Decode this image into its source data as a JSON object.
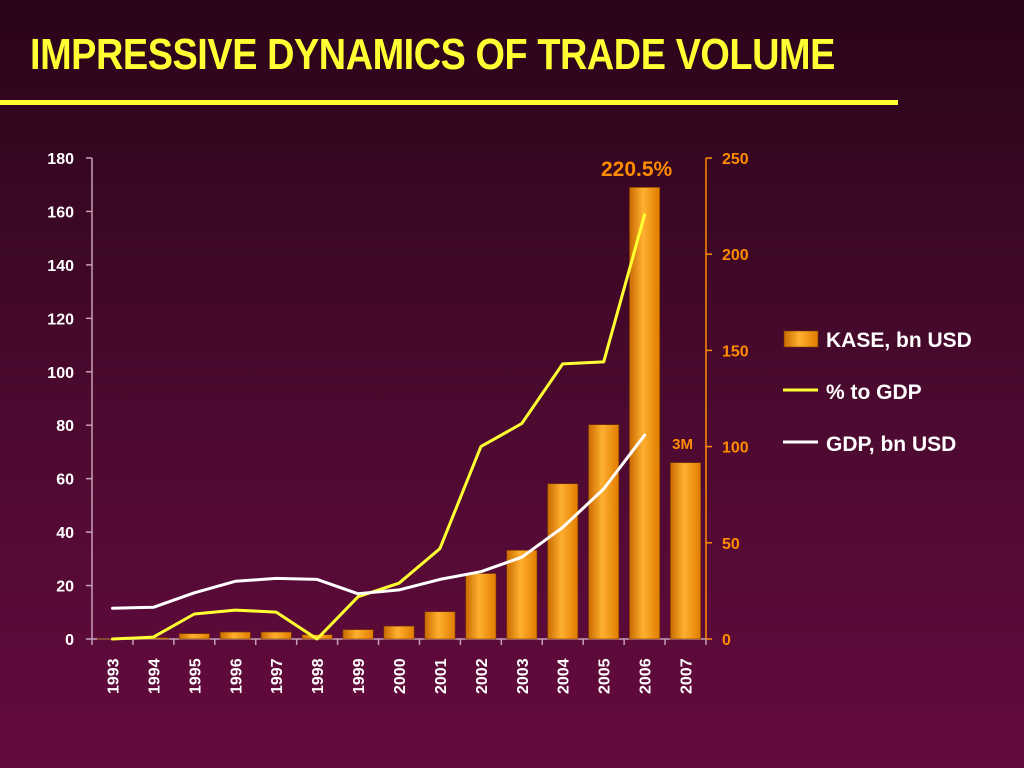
{
  "slide": {
    "title": "IMPRESSIVE DYNAMICS OF TRADE VOLUME"
  },
  "chart_data": {
    "type": "bar",
    "title": "IMPRESSIVE DYNAMICS OF TRADE VOLUME",
    "categories": [
      "1993",
      "1994",
      "1995",
      "1996",
      "1997",
      "1998",
      "1999",
      "2000",
      "2001",
      "2002",
      "2003",
      "2004",
      "2005",
      "2006",
      "2007"
    ],
    "left_axis": {
      "min": 0,
      "max": 180,
      "ticks": [
        0,
        20,
        40,
        60,
        80,
        100,
        120,
        140,
        160,
        180
      ]
    },
    "right_axis": {
      "min": 0,
      "max": 250,
      "ticks": [
        0,
        50,
        100,
        150,
        200,
        250
      ]
    },
    "series": [
      {
        "name": "KASE, bn USD",
        "type": "bar",
        "axis": "left",
        "color": "#ff9900",
        "values": [
          0.1,
          0.5,
          2,
          2.6,
          2.6,
          1.6,
          3.5,
          4.8,
          10.2,
          24.5,
          33.2,
          58.1,
          80.2,
          169,
          66
        ]
      },
      {
        "name": "% to GDP",
        "type": "line",
        "axis": "right",
        "color": "#ffff33",
        "values": [
          0,
          1,
          13,
          15,
          14,
          0,
          22,
          29,
          47,
          100,
          112,
          143,
          144,
          220.5,
          null
        ]
      },
      {
        "name": "GDP, bn USD",
        "type": "line",
        "axis": "right",
        "color": "#ffffff",
        "values": [
          16,
          16.5,
          24,
          30,
          31.5,
          31,
          23.5,
          25.5,
          31,
          35,
          42.5,
          58,
          78,
          106,
          null
        ]
      }
    ],
    "annotations": [
      {
        "text": "220.5%",
        "category": "2006",
        "color": "#ff8c00"
      },
      {
        "text": "3M",
        "category": "2007",
        "color": "#ff8c00"
      }
    ],
    "legend": [
      "KASE, bn USD",
      "% to GDP",
      "GDP, bn USD"
    ]
  }
}
